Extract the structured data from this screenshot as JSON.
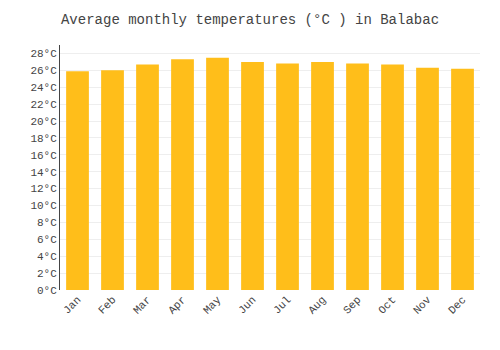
{
  "chart_data": {
    "type": "bar",
    "title": "Average monthly temperatures (°C ) in Balabac",
    "categories": [
      "Jan",
      "Feb",
      "Mar",
      "Apr",
      "May",
      "Jun",
      "Jul",
      "Aug",
      "Sep",
      "Oct",
      "Nov",
      "Dec"
    ],
    "values": [
      25.9,
      26.0,
      26.7,
      27.3,
      27.5,
      27.0,
      26.8,
      27.0,
      26.8,
      26.7,
      26.3,
      26.2
    ],
    "color": "#FFBE1A",
    "ylim": [
      0,
      29
    ],
    "yticks": [
      {
        "value": 0,
        "label": "0°C"
      },
      {
        "value": 2,
        "label": "2°C"
      },
      {
        "value": 4,
        "label": "4°C"
      },
      {
        "value": 6,
        "label": "6°C"
      },
      {
        "value": 8,
        "label": "8°C"
      },
      {
        "value": 10,
        "label": "10°C"
      },
      {
        "value": 12,
        "label": "12°C"
      },
      {
        "value": 14,
        "label": "14°C"
      },
      {
        "value": 16,
        "label": "16°C"
      },
      {
        "value": 18,
        "label": "18°C"
      },
      {
        "value": 20,
        "label": "20°C"
      },
      {
        "value": 22,
        "label": "22°C"
      },
      {
        "value": 24,
        "label": "24°C"
      },
      {
        "value": 26,
        "label": "26°C"
      },
      {
        "value": 28,
        "label": "28°C"
      }
    ],
    "grid": true
  }
}
